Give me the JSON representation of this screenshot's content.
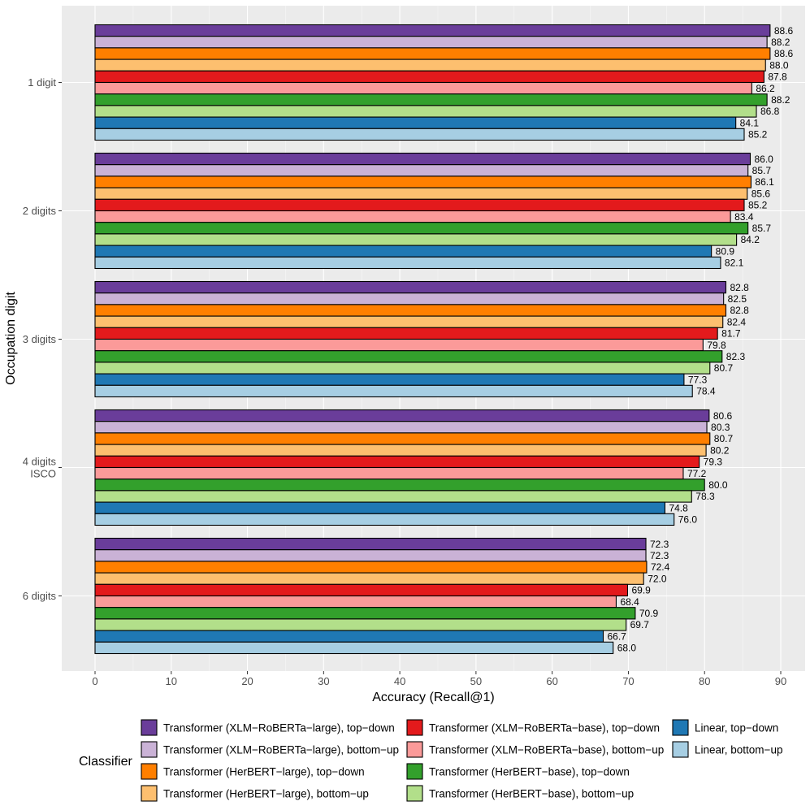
{
  "chart_data": {
    "type": "bar",
    "orientation": "horizontal",
    "xlabel": "Accuracy (Recall@1)",
    "ylabel": "Occupation digit",
    "xlim": [
      0,
      93
    ],
    "xticks": [
      0,
      10,
      20,
      30,
      40,
      50,
      60,
      70,
      80,
      90
    ],
    "grid": true,
    "legend_title": "Classifier",
    "legend_position": "bottom",
    "categories": [
      "1 digit",
      "2 digits",
      "3 digits",
      "4 digits\nISCO",
      "6 digits"
    ],
    "series": [
      {
        "name": "Transformer (XLM−RoBERTa−large), top−down",
        "color": "#6a3d9a",
        "values": [
          88.6,
          86.0,
          82.8,
          80.6,
          72.3
        ]
      },
      {
        "name": "Transformer (XLM−RoBERTa−large), bottom−up",
        "color": "#cab2d6",
        "values": [
          88.2,
          85.7,
          82.5,
          80.3,
          72.3
        ]
      },
      {
        "name": "Transformer (HerBERT−large), top−down",
        "color": "#ff7f00",
        "values": [
          88.6,
          86.1,
          82.8,
          80.7,
          72.4
        ]
      },
      {
        "name": "Transformer (HerBERT−large), bottom−up",
        "color": "#fdbf6f",
        "values": [
          88.0,
          85.6,
          82.4,
          80.2,
          72.0
        ]
      },
      {
        "name": "Transformer (XLM−RoBERTa−base), top−down",
        "color": "#e31a1c",
        "values": [
          87.8,
          85.2,
          81.7,
          79.3,
          69.9
        ]
      },
      {
        "name": "Transformer (XLM−RoBERTa−base), bottom−up",
        "color": "#fb9a99",
        "values": [
          86.2,
          83.4,
          79.8,
          77.2,
          68.4
        ]
      },
      {
        "name": "Transformer (HerBERT−base), top−down",
        "color": "#33a02c",
        "values": [
          88.2,
          85.7,
          82.3,
          80.0,
          70.9
        ]
      },
      {
        "name": "Transformer (HerBERT−base), bottom−up",
        "color": "#b2df8a",
        "values": [
          86.8,
          84.2,
          80.7,
          78.3,
          69.7
        ]
      },
      {
        "name": "Linear, top−down",
        "color": "#1f78b4",
        "values": [
          84.1,
          80.9,
          77.3,
          74.8,
          66.7
        ]
      },
      {
        "name": "Linear, bottom−up",
        "color": "#a6cee3",
        "values": [
          85.2,
          82.1,
          78.4,
          76.0,
          68.0
        ]
      }
    ]
  }
}
